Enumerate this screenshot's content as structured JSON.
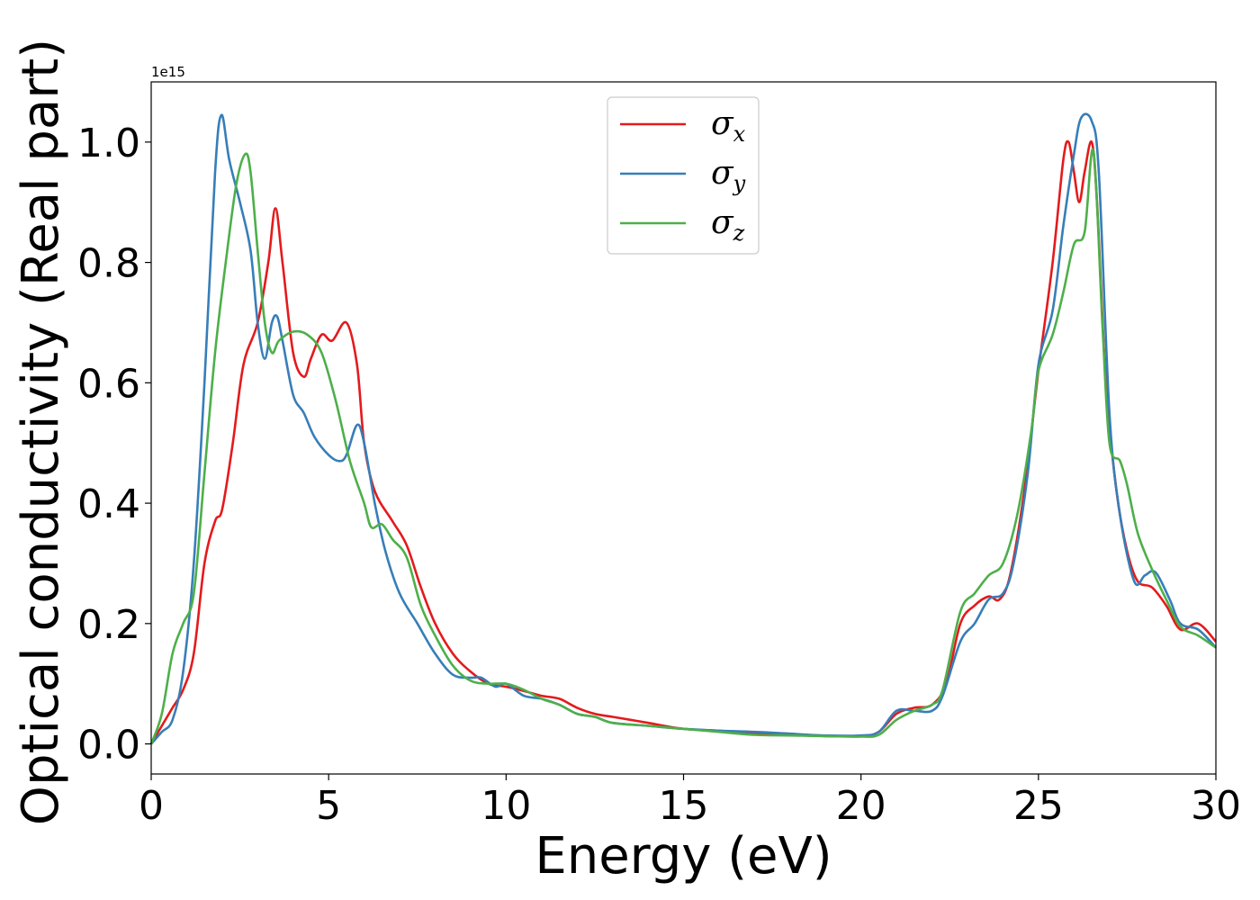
{
  "chart_data": {
    "type": "line",
    "xlabel": "Energy (eV)",
    "ylabel": "Optical conductivity (Real part)",
    "offset_text": "1e15",
    "xlim": [
      0,
      30
    ],
    "ylim": [
      -0.05,
      1.1
    ],
    "xticks": [
      0,
      5,
      10,
      15,
      20,
      25,
      30
    ],
    "xtick_labels": [
      "0",
      "5",
      "10",
      "15",
      "20",
      "25",
      "30"
    ],
    "yticks": [
      0.0,
      0.2,
      0.4,
      0.6,
      0.8,
      1.0
    ],
    "ytick_labels": [
      "0.0",
      "0.2",
      "0.4",
      "0.6",
      "0.8",
      "1.0"
    ],
    "grid": false,
    "legend_position": "top-center",
    "series": [
      {
        "name": "σ",
        "subscript": "x",
        "color": "#e41a1c",
        "points": [
          [
            0,
            0
          ],
          [
            0.3,
            0.03
          ],
          [
            0.6,
            0.06
          ],
          [
            0.9,
            0.09
          ],
          [
            1.2,
            0.15
          ],
          [
            1.5,
            0.3
          ],
          [
            1.8,
            0.37
          ],
          [
            2.0,
            0.39
          ],
          [
            2.3,
            0.5
          ],
          [
            2.6,
            0.63
          ],
          [
            3.0,
            0.7
          ],
          [
            3.3,
            0.8
          ],
          [
            3.5,
            0.89
          ],
          [
            3.7,
            0.8
          ],
          [
            4.0,
            0.65
          ],
          [
            4.3,
            0.61
          ],
          [
            4.5,
            0.64
          ],
          [
            4.8,
            0.68
          ],
          [
            5.1,
            0.67
          ],
          [
            5.5,
            0.7
          ],
          [
            5.8,
            0.63
          ],
          [
            6.0,
            0.5
          ],
          [
            6.3,
            0.42
          ],
          [
            6.8,
            0.37
          ],
          [
            7.2,
            0.33
          ],
          [
            7.6,
            0.26
          ],
          [
            8.0,
            0.2
          ],
          [
            8.5,
            0.15
          ],
          [
            9.0,
            0.12
          ],
          [
            9.5,
            0.1
          ],
          [
            10.0,
            0.095
          ],
          [
            10.5,
            0.088
          ],
          [
            11.0,
            0.08
          ],
          [
            11.5,
            0.075
          ],
          [
            12.0,
            0.06
          ],
          [
            12.5,
            0.05
          ],
          [
            13.0,
            0.045
          ],
          [
            13.5,
            0.04
          ],
          [
            14.0,
            0.035
          ],
          [
            15.0,
            0.025
          ],
          [
            16.0,
            0.022
          ],
          [
            17.0,
            0.018
          ],
          [
            18.0,
            0.015
          ],
          [
            19.0,
            0.013
          ],
          [
            20.0,
            0.013
          ],
          [
            20.5,
            0.02
          ],
          [
            21.0,
            0.05
          ],
          [
            21.5,
            0.06
          ],
          [
            22.0,
            0.065
          ],
          [
            22.4,
            0.1
          ],
          [
            22.8,
            0.2
          ],
          [
            23.2,
            0.23
          ],
          [
            23.6,
            0.245
          ],
          [
            23.9,
            0.24
          ],
          [
            24.2,
            0.28
          ],
          [
            24.6,
            0.42
          ],
          [
            25.0,
            0.62
          ],
          [
            25.4,
            0.8
          ],
          [
            25.7,
            0.97
          ],
          [
            25.85,
            1.0
          ],
          [
            26.0,
            0.95
          ],
          [
            26.15,
            0.9
          ],
          [
            26.3,
            0.95
          ],
          [
            26.5,
            1.0
          ],
          [
            26.65,
            0.9
          ],
          [
            26.9,
            0.6
          ],
          [
            27.2,
            0.42
          ],
          [
            27.5,
            0.32
          ],
          [
            27.8,
            0.27
          ],
          [
            28.2,
            0.26
          ],
          [
            28.6,
            0.23
          ],
          [
            29.0,
            0.19
          ],
          [
            29.5,
            0.2
          ],
          [
            30,
            0.17
          ]
        ]
      },
      {
        "name": "σ",
        "subscript": "y",
        "color": "#377eb8",
        "points": [
          [
            0,
            0
          ],
          [
            0.3,
            0.02
          ],
          [
            0.6,
            0.04
          ],
          [
            0.9,
            0.12
          ],
          [
            1.2,
            0.3
          ],
          [
            1.5,
            0.6
          ],
          [
            1.8,
            0.95
          ],
          [
            1.98,
            1.045
          ],
          [
            2.2,
            0.97
          ],
          [
            2.5,
            0.9
          ],
          [
            2.8,
            0.82
          ],
          [
            3.0,
            0.7
          ],
          [
            3.2,
            0.64
          ],
          [
            3.4,
            0.7
          ],
          [
            3.55,
            0.71
          ],
          [
            3.7,
            0.67
          ],
          [
            4.0,
            0.58
          ],
          [
            4.3,
            0.55
          ],
          [
            4.6,
            0.51
          ],
          [
            5.0,
            0.48
          ],
          [
            5.3,
            0.47
          ],
          [
            5.5,
            0.48
          ],
          [
            5.8,
            0.53
          ],
          [
            6.0,
            0.5
          ],
          [
            6.3,
            0.4
          ],
          [
            6.6,
            0.32
          ],
          [
            7.0,
            0.25
          ],
          [
            7.5,
            0.2
          ],
          [
            8.0,
            0.15
          ],
          [
            8.5,
            0.115
          ],
          [
            9.0,
            0.11
          ],
          [
            9.3,
            0.11
          ],
          [
            9.7,
            0.095
          ],
          [
            10.0,
            0.1
          ],
          [
            10.5,
            0.08
          ],
          [
            11.0,
            0.075
          ],
          [
            11.5,
            0.065
          ],
          [
            12.0,
            0.05
          ],
          [
            12.5,
            0.045
          ],
          [
            13.0,
            0.035
          ],
          [
            14.0,
            0.03
          ],
          [
            15.0,
            0.025
          ],
          [
            16.0,
            0.022
          ],
          [
            17.0,
            0.02
          ],
          [
            18.0,
            0.017
          ],
          [
            19.0,
            0.014
          ],
          [
            20.0,
            0.014
          ],
          [
            20.5,
            0.02
          ],
          [
            21.0,
            0.055
          ],
          [
            21.5,
            0.055
          ],
          [
            22.0,
            0.055
          ],
          [
            22.3,
            0.08
          ],
          [
            22.8,
            0.17
          ],
          [
            23.2,
            0.2
          ],
          [
            23.6,
            0.24
          ],
          [
            24.0,
            0.25
          ],
          [
            24.3,
            0.3
          ],
          [
            24.7,
            0.45
          ],
          [
            25.0,
            0.63
          ],
          [
            25.4,
            0.72
          ],
          [
            25.7,
            0.86
          ],
          [
            26.0,
            0.98
          ],
          [
            26.2,
            1.04
          ],
          [
            26.5,
            1.035
          ],
          [
            26.7,
            0.95
          ],
          [
            27.0,
            0.55
          ],
          [
            27.3,
            0.38
          ],
          [
            27.7,
            0.27
          ],
          [
            28.0,
            0.28
          ],
          [
            28.3,
            0.285
          ],
          [
            28.7,
            0.24
          ],
          [
            29.0,
            0.2
          ],
          [
            29.5,
            0.19
          ],
          [
            30,
            0.16
          ]
        ]
      },
      {
        "name": "σ",
        "subscript": "z",
        "color": "#4daf4a",
        "points": [
          [
            0,
            0
          ],
          [
            0.3,
            0.05
          ],
          [
            0.6,
            0.15
          ],
          [
            0.9,
            0.2
          ],
          [
            1.2,
            0.25
          ],
          [
            1.5,
            0.45
          ],
          [
            1.8,
            0.65
          ],
          [
            2.1,
            0.8
          ],
          [
            2.4,
            0.93
          ],
          [
            2.65,
            0.98
          ],
          [
            2.8,
            0.95
          ],
          [
            3.0,
            0.82
          ],
          [
            3.2,
            0.7
          ],
          [
            3.4,
            0.65
          ],
          [
            3.6,
            0.67
          ],
          [
            4.0,
            0.685
          ],
          [
            4.4,
            0.68
          ],
          [
            4.8,
            0.65
          ],
          [
            5.2,
            0.57
          ],
          [
            5.6,
            0.47
          ],
          [
            6.0,
            0.4
          ],
          [
            6.2,
            0.36
          ],
          [
            6.5,
            0.365
          ],
          [
            6.8,
            0.34
          ],
          [
            7.2,
            0.31
          ],
          [
            7.6,
            0.23
          ],
          [
            8.0,
            0.18
          ],
          [
            8.5,
            0.13
          ],
          [
            9.0,
            0.105
          ],
          [
            9.5,
            0.1
          ],
          [
            10.0,
            0.1
          ],
          [
            10.5,
            0.09
          ],
          [
            11.0,
            0.075
          ],
          [
            11.5,
            0.065
          ],
          [
            12.0,
            0.05
          ],
          [
            12.5,
            0.045
          ],
          [
            13.0,
            0.035
          ],
          [
            14.0,
            0.03
          ],
          [
            15.0,
            0.025
          ],
          [
            16.0,
            0.02
          ],
          [
            17.0,
            0.015
          ],
          [
            18.0,
            0.014
          ],
          [
            19.0,
            0.013
          ],
          [
            20.0,
            0.012
          ],
          [
            20.5,
            0.015
          ],
          [
            21.0,
            0.04
          ],
          [
            21.5,
            0.055
          ],
          [
            22.0,
            0.065
          ],
          [
            22.3,
            0.09
          ],
          [
            22.8,
            0.22
          ],
          [
            23.2,
            0.25
          ],
          [
            23.6,
            0.28
          ],
          [
            24.0,
            0.3
          ],
          [
            24.4,
            0.38
          ],
          [
            24.8,
            0.52
          ],
          [
            25.0,
            0.62
          ],
          [
            25.4,
            0.68
          ],
          [
            25.7,
            0.75
          ],
          [
            26.0,
            0.83
          ],
          [
            26.3,
            0.85
          ],
          [
            26.55,
            0.985
          ],
          [
            26.8,
            0.7
          ],
          [
            27.0,
            0.5
          ],
          [
            27.3,
            0.47
          ],
          [
            27.5,
            0.43
          ],
          [
            27.8,
            0.35
          ],
          [
            28.2,
            0.29
          ],
          [
            28.6,
            0.24
          ],
          [
            29.0,
            0.195
          ],
          [
            29.5,
            0.18
          ],
          [
            30,
            0.16
          ]
        ]
      }
    ]
  }
}
